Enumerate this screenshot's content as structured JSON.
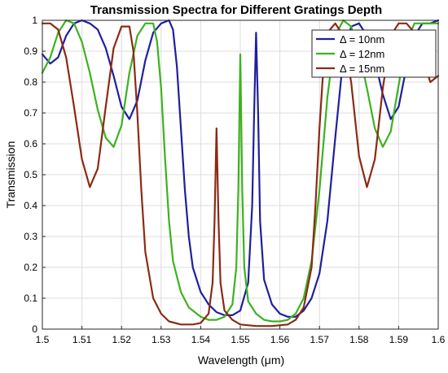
{
  "chart_data": {
    "type": "line",
    "title": "Transmission Spectra for Different Gratings Depth",
    "xlabel": "Wavelength (μm)",
    "ylabel": "Transmission",
    "xlim": [
      1.5,
      1.6
    ],
    "ylim": [
      0,
      1
    ],
    "xticks": [
      1.5,
      1.51,
      1.52,
      1.53,
      1.54,
      1.55,
      1.56,
      1.57,
      1.58,
      1.59,
      1.6
    ],
    "xtick_labels": [
      "1.5",
      "1.51",
      "1.52",
      "1.53",
      "1.54",
      "1.55",
      "1.56",
      "1.57",
      "1.58",
      "1.59",
      "1.6"
    ],
    "yticks": [
      0,
      0.1,
      0.2,
      0.3,
      0.4,
      0.5,
      0.6,
      0.7,
      0.8,
      0.9,
      1
    ],
    "ytick_labels": [
      "0",
      "0.1",
      "0.2",
      "0.3",
      "0.4",
      "0.5",
      "0.6",
      "0.7",
      "0.8",
      "0.9",
      "1"
    ],
    "grid": true,
    "legend_position": "top-right",
    "series": [
      {
        "name": "Δ = 10nm",
        "color": "#1f1f9e",
        "points": [
          [
            1.5,
            0.89
          ],
          [
            1.502,
            0.86
          ],
          [
            1.504,
            0.88
          ],
          [
            1.506,
            0.95
          ],
          [
            1.508,
            0.99
          ],
          [
            1.51,
            1.0
          ],
          [
            1.512,
            0.99
          ],
          [
            1.514,
            0.97
          ],
          [
            1.516,
            0.91
          ],
          [
            1.518,
            0.82
          ],
          [
            1.52,
            0.72
          ],
          [
            1.522,
            0.68
          ],
          [
            1.524,
            0.74
          ],
          [
            1.526,
            0.87
          ],
          [
            1.528,
            0.96
          ],
          [
            1.53,
            0.99
          ],
          [
            1.532,
            1.0
          ],
          [
            1.533,
            0.97
          ],
          [
            1.534,
            0.85
          ],
          [
            1.535,
            0.65
          ],
          [
            1.536,
            0.45
          ],
          [
            1.537,
            0.3
          ],
          [
            1.538,
            0.2
          ],
          [
            1.54,
            0.12
          ],
          [
            1.542,
            0.08
          ],
          [
            1.544,
            0.055
          ],
          [
            1.546,
            0.045
          ],
          [
            1.548,
            0.045
          ],
          [
            1.55,
            0.06
          ],
          [
            1.552,
            0.15
          ],
          [
            1.553,
            0.4
          ],
          [
            1.5535,
            0.7
          ],
          [
            1.554,
            0.96
          ],
          [
            1.5545,
            0.7
          ],
          [
            1.555,
            0.35
          ],
          [
            1.556,
            0.16
          ],
          [
            1.558,
            0.08
          ],
          [
            1.56,
            0.05
          ],
          [
            1.562,
            0.04
          ],
          [
            1.564,
            0.04
          ],
          [
            1.566,
            0.06
          ],
          [
            1.568,
            0.1
          ],
          [
            1.57,
            0.18
          ],
          [
            1.572,
            0.35
          ],
          [
            1.574,
            0.62
          ],
          [
            1.576,
            0.88
          ],
          [
            1.578,
            0.98
          ],
          [
            1.58,
            0.99
          ],
          [
            1.582,
            0.95
          ],
          [
            1.584,
            0.87
          ],
          [
            1.586,
            0.76
          ],
          [
            1.588,
            0.68
          ],
          [
            1.59,
            0.72
          ],
          [
            1.592,
            0.85
          ],
          [
            1.594,
            0.95
          ],
          [
            1.596,
            0.99
          ],
          [
            1.598,
            0.99
          ],
          [
            1.6,
            1.0
          ]
        ]
      },
      {
        "name": "Δ = 12nm",
        "color": "#3cb21f",
        "points": [
          [
            1.5,
            0.83
          ],
          [
            1.502,
            0.88
          ],
          [
            1.504,
            0.96
          ],
          [
            1.506,
            1.0
          ],
          [
            1.508,
            0.99
          ],
          [
            1.51,
            0.93
          ],
          [
            1.512,
            0.83
          ],
          [
            1.514,
            0.71
          ],
          [
            1.516,
            0.62
          ],
          [
            1.518,
            0.59
          ],
          [
            1.52,
            0.66
          ],
          [
            1.522,
            0.83
          ],
          [
            1.524,
            0.95
          ],
          [
            1.526,
            0.99
          ],
          [
            1.528,
            0.99
          ],
          [
            1.529,
            0.93
          ],
          [
            1.53,
            0.78
          ],
          [
            1.531,
            0.55
          ],
          [
            1.532,
            0.35
          ],
          [
            1.533,
            0.22
          ],
          [
            1.535,
            0.12
          ],
          [
            1.537,
            0.07
          ],
          [
            1.54,
            0.04
          ],
          [
            1.542,
            0.03
          ],
          [
            1.544,
            0.03
          ],
          [
            1.546,
            0.04
          ],
          [
            1.548,
            0.08
          ],
          [
            1.549,
            0.2
          ],
          [
            1.5495,
            0.45
          ],
          [
            1.55,
            0.89
          ],
          [
            1.5505,
            0.45
          ],
          [
            1.551,
            0.2
          ],
          [
            1.552,
            0.09
          ],
          [
            1.554,
            0.05
          ],
          [
            1.556,
            0.03
          ],
          [
            1.558,
            0.025
          ],
          [
            1.56,
            0.025
          ],
          [
            1.562,
            0.03
          ],
          [
            1.564,
            0.05
          ],
          [
            1.566,
            0.1
          ],
          [
            1.568,
            0.22
          ],
          [
            1.57,
            0.45
          ],
          [
            1.572,
            0.75
          ],
          [
            1.574,
            0.95
          ],
          [
            1.576,
            1.0
          ],
          [
            1.578,
            0.98
          ],
          [
            1.58,
            0.9
          ],
          [
            1.582,
            0.78
          ],
          [
            1.584,
            0.65
          ],
          [
            1.586,
            0.59
          ],
          [
            1.588,
            0.64
          ],
          [
            1.59,
            0.79
          ],
          [
            1.592,
            0.93
          ],
          [
            1.594,
            0.99
          ],
          [
            1.596,
            0.99
          ],
          [
            1.6,
            0.99
          ]
        ]
      },
      {
        "name": "Δ = 15nm",
        "color": "#8b2a14",
        "points": [
          [
            1.5,
            0.99
          ],
          [
            1.502,
            0.99
          ],
          [
            1.504,
            0.97
          ],
          [
            1.506,
            0.88
          ],
          [
            1.508,
            0.72
          ],
          [
            1.51,
            0.55
          ],
          [
            1.512,
            0.46
          ],
          [
            1.514,
            0.52
          ],
          [
            1.516,
            0.72
          ],
          [
            1.518,
            0.91
          ],
          [
            1.52,
            0.98
          ],
          [
            1.522,
            0.98
          ],
          [
            1.523,
            0.9
          ],
          [
            1.524,
            0.7
          ],
          [
            1.525,
            0.45
          ],
          [
            1.526,
            0.25
          ],
          [
            1.528,
            0.1
          ],
          [
            1.53,
            0.05
          ],
          [
            1.532,
            0.025
          ],
          [
            1.535,
            0.015
          ],
          [
            1.538,
            0.015
          ],
          [
            1.54,
            0.02
          ],
          [
            1.542,
            0.05
          ],
          [
            1.543,
            0.15
          ],
          [
            1.5435,
            0.35
          ],
          [
            1.544,
            0.65
          ],
          [
            1.5445,
            0.35
          ],
          [
            1.545,
            0.15
          ],
          [
            1.546,
            0.06
          ],
          [
            1.548,
            0.03
          ],
          [
            1.55,
            0.015
          ],
          [
            1.554,
            0.01
          ],
          [
            1.558,
            0.01
          ],
          [
            1.562,
            0.015
          ],
          [
            1.564,
            0.03
          ],
          [
            1.566,
            0.07
          ],
          [
            1.568,
            0.2
          ],
          [
            1.569,
            0.4
          ],
          [
            1.57,
            0.65
          ],
          [
            1.571,
            0.85
          ],
          [
            1.572,
            0.96
          ],
          [
            1.574,
            0.99
          ],
          [
            1.576,
            0.95
          ],
          [
            1.578,
            0.8
          ],
          [
            1.58,
            0.56
          ],
          [
            1.582,
            0.46
          ],
          [
            1.584,
            0.55
          ],
          [
            1.586,
            0.78
          ],
          [
            1.588,
            0.95
          ],
          [
            1.59,
            0.99
          ],
          [
            1.592,
            0.99
          ],
          [
            1.594,
            0.96
          ],
          [
            1.596,
            0.88
          ],
          [
            1.598,
            0.8
          ],
          [
            1.6,
            0.82
          ]
        ]
      }
    ]
  }
}
